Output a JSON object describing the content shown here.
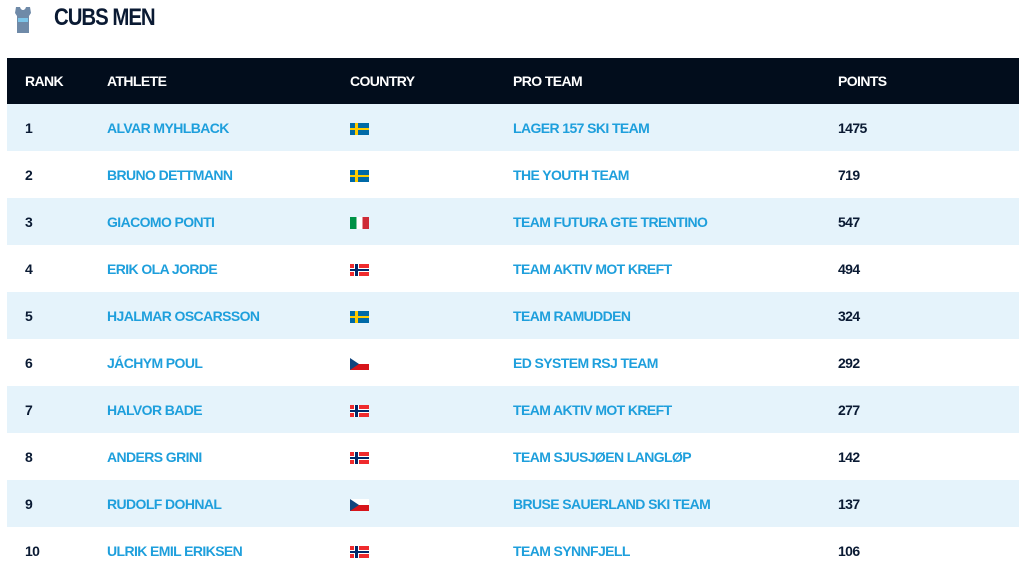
{
  "title": "CUBS MEN",
  "headers": {
    "rank": "RANK",
    "athlete": "ATHLETE",
    "country": "COUNTRY",
    "team": "PRO TEAM",
    "points": "POINTS"
  },
  "flag_colors": {
    "SWE": [
      "#006aa7",
      "#fecc00"
    ],
    "ITA": [
      "#009246",
      "#ffffff",
      "#ce2b37"
    ],
    "NOR": [
      "#ef2b2d",
      "#ffffff",
      "#002868"
    ],
    "CZE": [
      "#ffffff",
      "#d7141a",
      "#11457e"
    ]
  },
  "rows": [
    {
      "rank": "1",
      "athlete": "ALVAR MYHLBACK",
      "country": "SWE",
      "team": "LAGER 157 SKI TEAM",
      "points": "1475"
    },
    {
      "rank": "2",
      "athlete": "BRUNO DETTMANN",
      "country": "SWE",
      "team": "THE YOUTH TEAM",
      "points": "719"
    },
    {
      "rank": "3",
      "athlete": "GIACOMO PONTI",
      "country": "ITA",
      "team": "TEAM FUTURA GTE TRENTINO",
      "points": "547"
    },
    {
      "rank": "4",
      "athlete": "ERIK OLA JORDE",
      "country": "NOR",
      "team": "TEAM AKTIV MOT KREFT",
      "points": "494"
    },
    {
      "rank": "5",
      "athlete": "HJALMAR OSCARSSON",
      "country": "SWE",
      "team": "TEAM RAMUDDEN",
      "points": "324"
    },
    {
      "rank": "6",
      "athlete": "JÁCHYM POUL",
      "country": "CZE",
      "team": "ED SYSTEM RSJ TEAM",
      "points": "292"
    },
    {
      "rank": "7",
      "athlete": "HALVOR BADE",
      "country": "NOR",
      "team": "TEAM AKTIV MOT KREFT",
      "points": "277"
    },
    {
      "rank": "8",
      "athlete": "ANDERS GRINI",
      "country": "NOR",
      "team": "TEAM SJUSJØEN LANGLØP",
      "points": "142"
    },
    {
      "rank": "9",
      "athlete": "RUDOLF DOHNAL",
      "country": "CZE",
      "team": "BRUSE SAUERLAND SKI TEAM",
      "points": "137"
    },
    {
      "rank": "10",
      "athlete": "ULRIK EMIL ERIKSEN",
      "country": "NOR",
      "team": "TEAM SYNNFJELL",
      "points": "106"
    }
  ]
}
